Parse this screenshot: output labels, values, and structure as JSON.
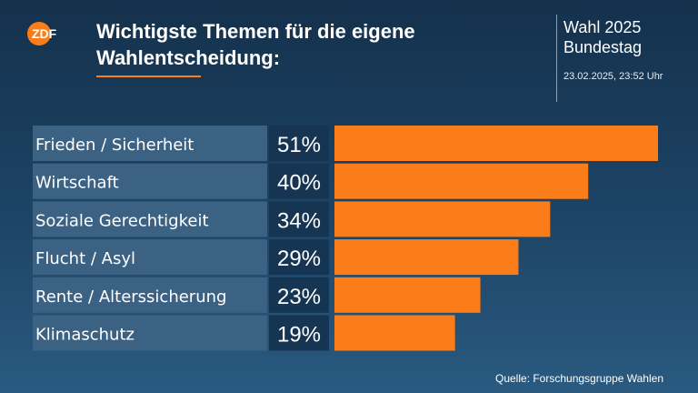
{
  "header": {
    "title_line1": "Wichtigste Themen für die eigene",
    "title_line2": "Wahlentscheidung:",
    "election_line1": "Wahl 2025",
    "election_line2": "Bundestag",
    "timestamp": "23.02.2025, 23:52 Uhr",
    "logo_text": "ZDF"
  },
  "source": "Quelle: Forschungsgruppe Wahlen",
  "colors": {
    "accent": "#fa7d19",
    "label_bg": "#3c6283",
    "value_bg": "#163553"
  },
  "chart_data": {
    "type": "bar",
    "orientation": "horizontal",
    "categories": [
      "Frieden / Sicherheit",
      "Wirtschaft",
      "Soziale Gerechtigkeit",
      "Flucht / Asyl",
      "Rente / Alterssicherung",
      "Klimaschutz"
    ],
    "values": [
      51,
      40,
      34,
      29,
      23,
      19
    ],
    "value_labels": [
      "51%",
      "40%",
      "34%",
      "29%",
      "23%",
      "19%"
    ],
    "unit": "%",
    "xlim": [
      0,
      51
    ],
    "grid": false,
    "legend": "none"
  }
}
